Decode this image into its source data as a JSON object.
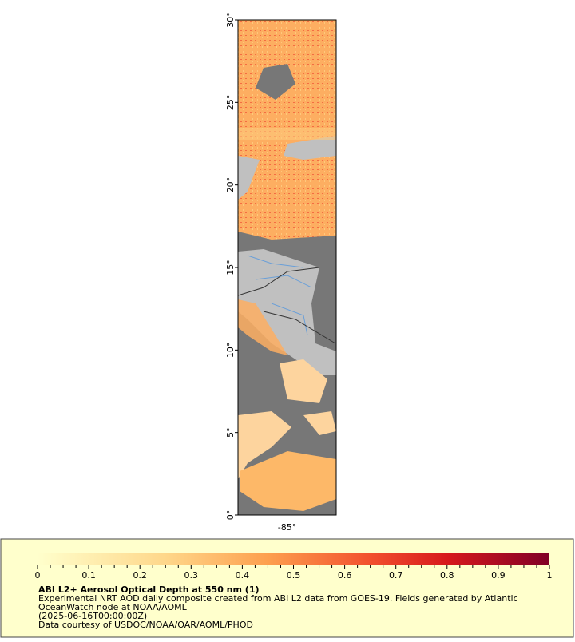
{
  "map": {
    "latlim": [
      0,
      30
    ],
    "lonlim": [
      -88,
      -82
    ],
    "yticks": [
      {
        "value": 0,
        "label": "0°"
      },
      {
        "value": 5,
        "label": "5°"
      },
      {
        "value": 10,
        "label": "10°"
      },
      {
        "value": 15,
        "label": "15°"
      },
      {
        "value": 20,
        "label": "20°"
      },
      {
        "value": 25,
        "label": "25°"
      },
      {
        "value": 30,
        "label": "30°"
      }
    ],
    "xticks": [
      {
        "value": -85,
        "label": "-85°"
      }
    ]
  },
  "legend": {
    "colorlim": [
      0,
      1
    ],
    "ticks": [
      0,
      0.1,
      0.2,
      0.3,
      0.4,
      0.5,
      0.6,
      0.7,
      0.8,
      0.9,
      1
    ],
    "title": "ABI L2+ Aerosol Optical Depth at 550 nm (1)",
    "lines": [
      "Experimental NRT AOD daily composite created from ABI L2 data from GOES-19. Fields generated by Atlantic",
      "OceanWatch node at NOAA/AOML",
      "(2025-06-16T00:00:00Z)",
      "Data courtesy of USDOC/NOAA/OAR/AOML/PHOD"
    ]
  }
}
